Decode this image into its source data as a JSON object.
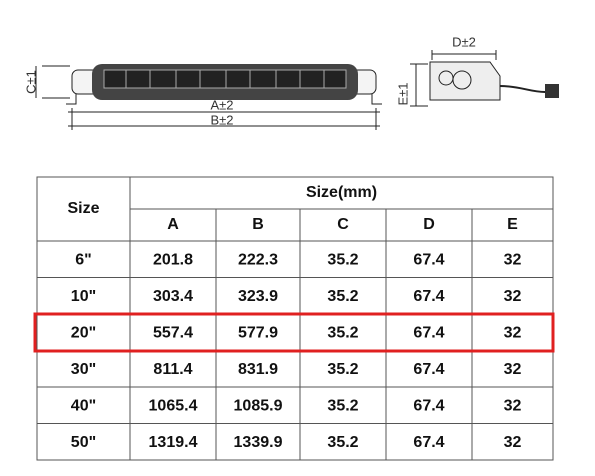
{
  "drawing": {
    "labels": {
      "c": "C±1",
      "a": "A±2",
      "b": "B±2",
      "d": "D±2",
      "e": "E±1"
    }
  },
  "table": {
    "size_header": "Size",
    "group_header": "Size(mm)",
    "columns": [
      "A",
      "B",
      "C",
      "D",
      "E"
    ],
    "rows": [
      [
        "6\"",
        "201.8",
        "222.3",
        "35.2",
        "67.4",
        "32"
      ],
      [
        "10\"",
        "303.4",
        "323.9",
        "35.2",
        "67.4",
        "32"
      ],
      [
        "20\"",
        "557.4",
        "577.9",
        "35.2",
        "67.4",
        "32"
      ],
      [
        "30\"",
        "811.4",
        "831.9",
        "35.2",
        "67.4",
        "32"
      ],
      [
        "40\"",
        "1065.4",
        "1085.9",
        "35.2",
        "67.4",
        "32"
      ],
      [
        "50\"",
        "1319.4",
        "1339.9",
        "35.2",
        "67.4",
        "32"
      ]
    ]
  }
}
